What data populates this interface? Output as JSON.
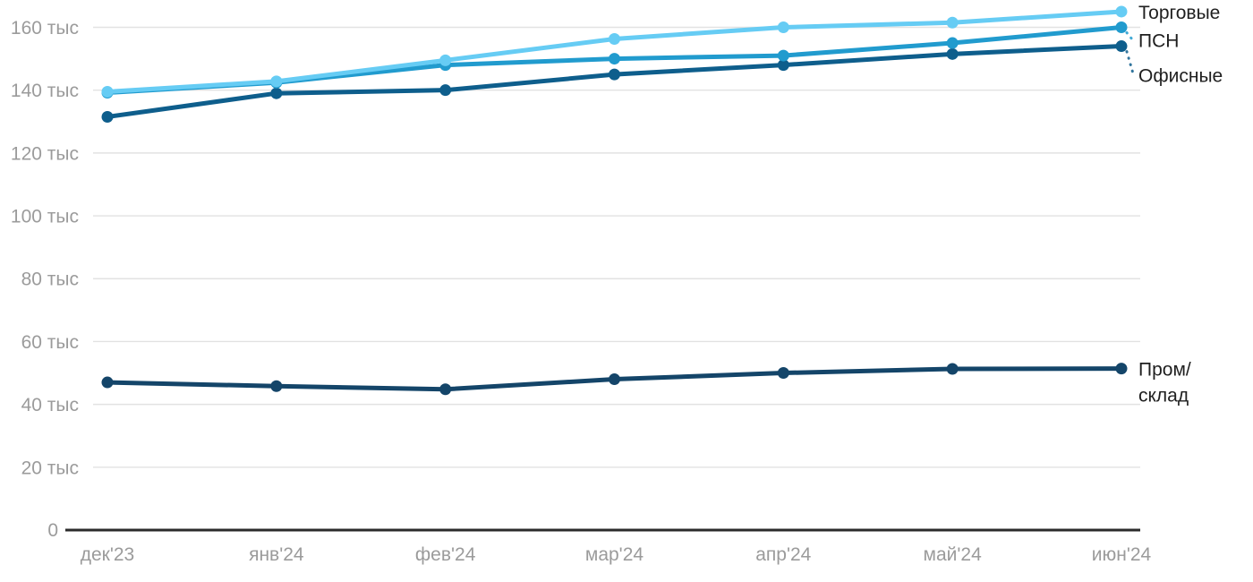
{
  "page": {
    "background": "#ffffff"
  },
  "chart_data": {
    "type": "line",
    "title": "",
    "unit": "тыс",
    "x_categories": [
      "дек'23",
      "янв'24",
      "фев'24",
      "мар'24",
      "апр'24",
      "май'24",
      "июн'24"
    ],
    "y_ticks": [
      0,
      20,
      40,
      60,
      80,
      100,
      120,
      140,
      160
    ],
    "y_tick_labels": [
      "0",
      "20 тыс",
      "40 тыс",
      "60 тыс",
      "80 тыс",
      "100 тыс",
      "120 тыс",
      "140 тыс",
      "160 тыс"
    ],
    "ylim": [
      0,
      168
    ],
    "grid": true,
    "legend_position": "inline-right",
    "series": [
      {
        "name": "Торговые",
        "color": "#66ccf4",
        "values": [
          139.5,
          142.8,
          149.5,
          156.3,
          160,
          161.5,
          165
        ]
      },
      {
        "name": "ПСН",
        "color": "#219bce",
        "values": [
          139.2,
          142.4,
          148,
          150,
          151,
          155,
          160
        ]
      },
      {
        "name": "Офисные",
        "color": "#0e5e8c",
        "values": [
          131.5,
          139,
          140,
          145,
          148,
          151.5,
          154
        ]
      },
      {
        "name": "Пром/склад",
        "color": "#144569",
        "values": [
          47,
          45.8,
          44.8,
          48,
          50,
          51.3,
          51.4
        ],
        "label_lines": [
          "Пром/",
          "склад"
        ]
      }
    ],
    "style": {
      "grid_color": "#e2e2e2",
      "axis_color": "#2b2b2b",
      "tick_text_color": "#9b9b9b",
      "series_label_color": "#1f1f1f"
    }
  }
}
